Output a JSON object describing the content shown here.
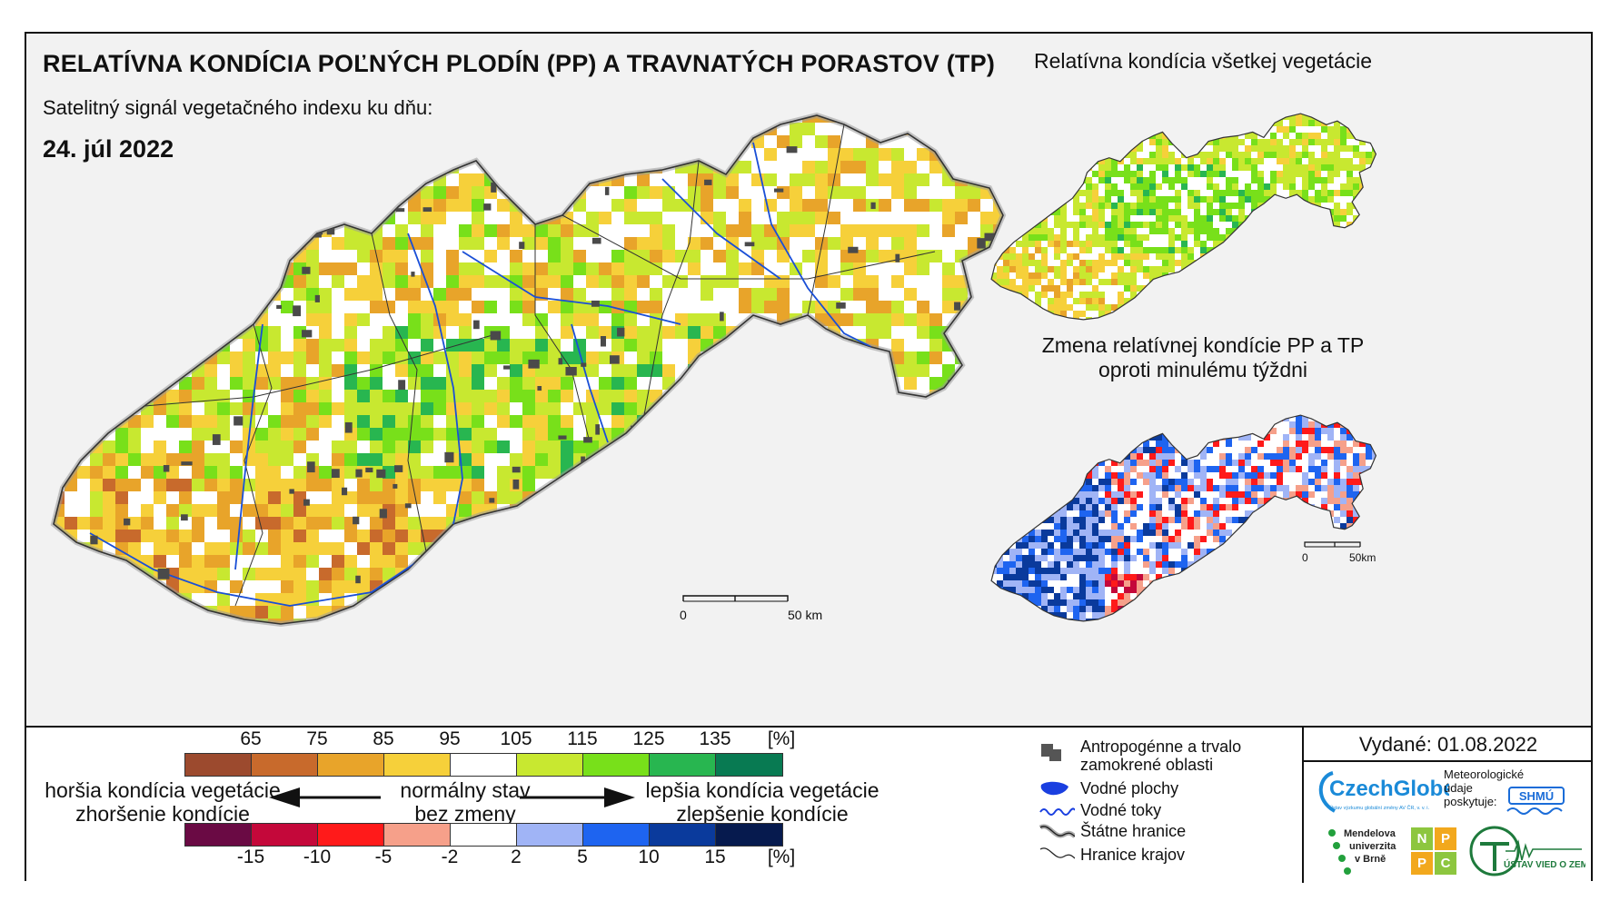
{
  "header": {
    "title": "RELATÍVNA KONDÍCIA POĽNÝCH PLODÍN (PP) A TRAVNATÝCH PORASTOV (TP)",
    "subtitle": "Satelitný signál vegetačného indexu ku dňu:",
    "date": "24. júl 2022"
  },
  "panels": {
    "all_vegetation": "Relatívna kondícia všetkej vegetácie",
    "change_line1": "Zmena relatívnej kondície PP a TP",
    "change_line2": "oproti minulému týždni"
  },
  "scalebars": {
    "main": {
      "start": "0",
      "end": "50 km"
    },
    "small": {
      "start": "0",
      "end": "50km"
    }
  },
  "legend": {
    "condition_ticks": [
      "65",
      "75",
      "85",
      "95",
      "105",
      "115",
      "125",
      "135",
      "[%]"
    ],
    "condition_colors": [
      "#9c4a2e",
      "#c86a2c",
      "#e8a42a",
      "#f6d03a",
      "#ffffff",
      "#c8e830",
      "#78e01a",
      "#28b650",
      "#087a52"
    ],
    "change_ticks": [
      "-15",
      "-10",
      "-5",
      "-2",
      "2",
      "5",
      "10",
      "15",
      "[%]"
    ],
    "change_colors": [
      "#6a0a44",
      "#c4083a",
      "#ff1a1a",
      "#f6a08a",
      "#ffffff",
      "#a0b4f6",
      "#1e64f0",
      "#0a3a9c",
      "#061a4e"
    ],
    "worse_line1": "horšia kondícia vegetácie",
    "worse_line2": "zhoršenie kondície",
    "normal_line1": "normálny stav",
    "normal_line2": "bez zmeny",
    "better_line1": "lepšia kondícia vegetácie",
    "better_line2": "zlepšenie kondície"
  },
  "symbols": {
    "urban_line1": "Antropogénne a trvalo",
    "urban_line2": "zamokrené oblasti",
    "water_bodies": "Vodné plochy",
    "rivers": "Vodné toky",
    "state_border": "Štátne hranice",
    "region_border": "Hranice krajov"
  },
  "publish": {
    "issued": "Vydané: 01.08.2022",
    "meteo_line1": "Meteorologické",
    "meteo_line2": "údaje",
    "meteo_line3": "poskytuje:",
    "czechglobe": "CzechGlobe",
    "czechglobe_sub": "Ústav výzkumu globální změny AV ČR, v. v. i.",
    "shmu": "SHMÚ",
    "mendel_line1": "Mendelova",
    "mendel_line2": "univerzita",
    "mendel_line3": "v Brně",
    "nppc_letters": [
      "N",
      "P",
      "P",
      "C"
    ],
    "uvz": "ÚSTAV VIED O ZEMI"
  }
}
